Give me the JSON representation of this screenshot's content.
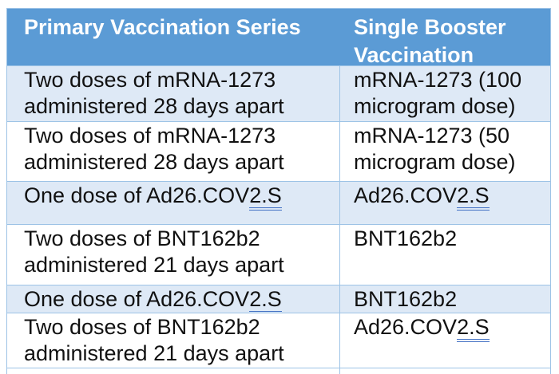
{
  "colors": {
    "header_bg": "#5B9BD5",
    "band_bg": "#DEE9F6",
    "row_bg": "#FFFFFF",
    "border": "#9DC3E6",
    "grammar_underline": "#4472C4",
    "header_text": "#FFFFFF",
    "body_text": "#111111"
  },
  "table": {
    "headers": [
      "Primary Vaccination Series",
      "Single Booster Vaccination"
    ],
    "rows": [
      {
        "banded": true,
        "primary": [
          {
            "t": "Two doses of mRNA-1273 administered 28 days apart",
            "u": false
          }
        ],
        "booster": [
          {
            "t": "mRNA-1273 (100 microgram dose)",
            "u": false
          }
        ]
      },
      {
        "banded": false,
        "primary": [
          {
            "t": "Two doses of mRNA-1273 administered 28 days apart",
            "u": false
          }
        ],
        "booster": [
          {
            "t": "mRNA-1273 (50 microgram dose)",
            "u": false
          }
        ]
      },
      {
        "banded": true,
        "primary": [
          {
            "t": "One dose of Ad26.COV",
            "u": false
          },
          {
            "t": "2.S",
            "u": true
          }
        ],
        "booster": [
          {
            "t": "Ad26.COV",
            "u": false
          },
          {
            "t": "2.S",
            "u": true
          }
        ]
      },
      {
        "banded": false,
        "primary": [
          {
            "t": "Two doses of BNT162b2 administered 21 days apart",
            "u": false
          }
        ],
        "booster": [
          {
            "t": "BNT162b2",
            "u": false
          }
        ]
      },
      {
        "banded": true,
        "primary": [
          {
            "t": "One dose of Ad26.COV",
            "u": false
          },
          {
            "t": "2.S",
            "u": true
          }
        ],
        "booster": [
          {
            "t": "BNT162b2",
            "u": false
          }
        ]
      },
      {
        "banded": false,
        "primary": [
          {
            "t": "Two doses of BNT162b2 administered 21 days apart",
            "u": false
          }
        ],
        "booster": [
          {
            "t": "Ad26.COV",
            "u": false
          },
          {
            "t": "2.S",
            "u": true
          }
        ]
      }
    ]
  }
}
